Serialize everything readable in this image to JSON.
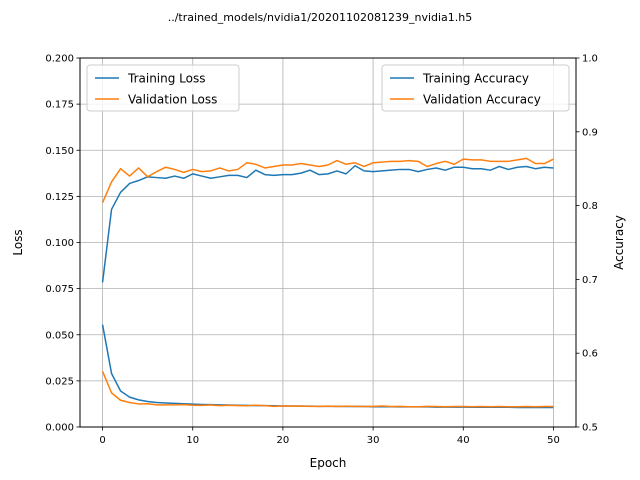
{
  "chart_data": {
    "type": "line",
    "title": "../trained_models/nvidia1/20201102081239_nvidia1.h5",
    "xlabel": "Epoch",
    "ylabel_left": "Loss",
    "ylabel_right": "Accuracy",
    "xlim": [
      -2.5,
      52.5
    ],
    "ylim_left": [
      0,
      0.2
    ],
    "ylim_right": [
      0.5,
      1.0
    ],
    "x_ticks": [
      "0",
      "10",
      "20",
      "30",
      "40",
      "50"
    ],
    "y_left_ticks": [
      "0.000",
      "0.025",
      "0.050",
      "0.075",
      "0.100",
      "0.125",
      "0.150",
      "0.175",
      "0.200"
    ],
    "y_right_ticks": [
      "0.5",
      "0.6",
      "0.7",
      "0.8",
      "0.9",
      "1.0"
    ],
    "grid": true,
    "legend_left": "top-left",
    "legend_right": "top-right",
    "colors": {
      "training": "#1f77b4",
      "validation": "#ff7f0e"
    },
    "x": [
      0,
      1,
      2,
      3,
      4,
      5,
      6,
      7,
      8,
      9,
      10,
      11,
      12,
      13,
      14,
      15,
      16,
      17,
      18,
      19,
      20,
      21,
      22,
      23,
      24,
      25,
      26,
      27,
      28,
      29,
      30,
      31,
      32,
      33,
      34,
      35,
      36,
      37,
      38,
      39,
      40,
      41,
      42,
      43,
      44,
      45,
      46,
      47,
      48,
      49,
      50
    ],
    "loss_series": [
      {
        "name": "Training Loss",
        "axis": "left",
        "color": "#1f77b4",
        "values": [
          0.0555,
          0.029,
          0.0195,
          0.0162,
          0.0147,
          0.0138,
          0.0133,
          0.013,
          0.0128,
          0.0126,
          0.0124,
          0.0122,
          0.0121,
          0.012,
          0.0119,
          0.0118,
          0.0117,
          0.0116,
          0.0116,
          0.0115,
          0.0114,
          0.0114,
          0.0113,
          0.0113,
          0.0112,
          0.0112,
          0.0112,
          0.0111,
          0.0111,
          0.0111,
          0.011,
          0.011,
          0.011,
          0.0109,
          0.0109,
          0.0109,
          0.0109,
          0.0108,
          0.0108,
          0.0108,
          0.0108,
          0.0107,
          0.0107,
          0.0107,
          0.0107,
          0.0107,
          0.0106,
          0.0106,
          0.0106,
          0.0106,
          0.0106
        ]
      },
      {
        "name": "Validation Loss",
        "axis": "left",
        "color": "#ff7f0e",
        "values": [
          0.0302,
          0.0185,
          0.0145,
          0.0133,
          0.0125,
          0.0126,
          0.012,
          0.012,
          0.012,
          0.0121,
          0.0118,
          0.0117,
          0.0119,
          0.0116,
          0.0118,
          0.0116,
          0.0115,
          0.0118,
          0.0116,
          0.0112,
          0.0114,
          0.0113,
          0.0114,
          0.0112,
          0.0112,
          0.0113,
          0.0111,
          0.0113,
          0.0112,
          0.0111,
          0.0112,
          0.0114,
          0.0111,
          0.0112,
          0.011,
          0.011,
          0.0112,
          0.0111,
          0.011,
          0.0111,
          0.0111,
          0.011,
          0.0111,
          0.011,
          0.0111,
          0.011,
          0.011,
          0.0111,
          0.011,
          0.0111,
          0.0111
        ]
      }
    ],
    "accuracy_series": [
      {
        "name": "Training Accuracy",
        "axis": "right",
        "color": "#1f77b4",
        "values": [
          0.696,
          0.795,
          0.818,
          0.83,
          0.834,
          0.839,
          0.838,
          0.837,
          0.84,
          0.837,
          0.843,
          0.84,
          0.837,
          0.839,
          0.841,
          0.841,
          0.838,
          0.848,
          0.842,
          0.841,
          0.842,
          0.842,
          0.844,
          0.848,
          0.842,
          0.843,
          0.847,
          0.843,
          0.854,
          0.847,
          0.846,
          0.847,
          0.848,
          0.849,
          0.849,
          0.846,
          0.849,
          0.851,
          0.848,
          0.852,
          0.852,
          0.85,
          0.85,
          0.848,
          0.853,
          0.849,
          0.852,
          0.853,
          0.85,
          0.852,
          0.851
        ]
      },
      {
        "name": "Validation Accuracy",
        "axis": "right",
        "color": "#ff7f0e",
        "values": [
          0.804,
          0.832,
          0.85,
          0.84,
          0.851,
          0.839,
          0.846,
          0.852,
          0.849,
          0.845,
          0.849,
          0.846,
          0.847,
          0.851,
          0.847,
          0.849,
          0.858,
          0.856,
          0.851,
          0.853,
          0.855,
          0.855,
          0.857,
          0.855,
          0.853,
          0.855,
          0.861,
          0.856,
          0.858,
          0.853,
          0.858,
          0.859,
          0.86,
          0.86,
          0.861,
          0.86,
          0.853,
          0.857,
          0.86,
          0.856,
          0.863,
          0.862,
          0.862,
          0.86,
          0.86,
          0.86,
          0.862,
          0.864,
          0.857,
          0.857,
          0.863
        ]
      }
    ]
  }
}
